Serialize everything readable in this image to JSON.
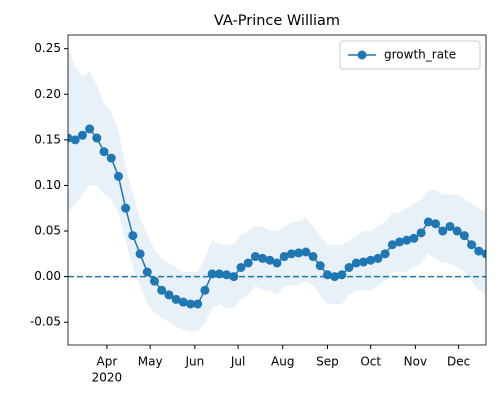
{
  "chart_data": {
    "type": "line",
    "title": "VA-Prince William",
    "x": [
      65,
      70,
      75,
      80,
      85,
      90,
      95,
      100,
      105,
      110,
      115,
      120,
      125,
      130,
      135,
      140,
      145,
      150,
      155,
      160,
      165,
      170,
      175,
      180,
      185,
      190,
      195,
      200,
      205,
      210,
      215,
      220,
      225,
      230,
      235,
      240,
      245,
      250,
      255,
      260,
      265,
      270,
      275,
      280,
      285,
      290,
      295,
      300,
      305,
      310,
      315,
      320,
      325,
      330,
      335,
      340,
      345,
      350,
      355
    ],
    "series": [
      {
        "name": "growth_rate",
        "color": "#1f77b4",
        "values": [
          0.152,
          0.15,
          0.155,
          0.162,
          0.152,
          0.137,
          0.13,
          0.11,
          0.075,
          0.045,
          0.025,
          0.005,
          -0.005,
          -0.015,
          -0.02,
          -0.025,
          -0.028,
          -0.03,
          -0.03,
          -0.015,
          0.003,
          0.003,
          0.002,
          0.0,
          0.01,
          0.015,
          0.022,
          0.02,
          0.018,
          0.015,
          0.022,
          0.025,
          0.026,
          0.027,
          0.022,
          0.012,
          0.002,
          0.0,
          0.002,
          0.01,
          0.015,
          0.016,
          0.018,
          0.02,
          0.025,
          0.035,
          0.038,
          0.04,
          0.042,
          0.048,
          0.06,
          0.058,
          0.05,
          0.055,
          0.05,
          0.045,
          0.035,
          0.028,
          0.025
        ]
      }
    ],
    "band": {
      "color": "#1f77b4",
      "lower": [
        0.07,
        0.08,
        0.09,
        0.1,
        0.1,
        0.09,
        0.085,
        0.07,
        0.04,
        0.01,
        -0.01,
        -0.03,
        -0.04,
        -0.045,
        -0.05,
        -0.055,
        -0.058,
        -0.06,
        -0.06,
        -0.05,
        -0.035,
        -0.03,
        -0.035,
        -0.035,
        -0.025,
        -0.02,
        -0.01,
        -0.015,
        -0.015,
        -0.02,
        -0.01,
        -0.01,
        -0.01,
        -0.005,
        -0.01,
        -0.02,
        -0.03,
        -0.03,
        -0.03,
        -0.02,
        -0.015,
        -0.015,
        -0.015,
        -0.01,
        -0.005,
        0.005,
        0.005,
        0.005,
        0.01,
        0.015,
        0.025,
        0.02,
        0.015,
        0.015,
        0.01,
        0.005,
        -0.005,
        -0.015,
        -0.02
      ],
      "upper": [
        0.25,
        0.23,
        0.22,
        0.225,
        0.21,
        0.19,
        0.18,
        0.16,
        0.12,
        0.09,
        0.065,
        0.045,
        0.03,
        0.02,
        0.015,
        0.01,
        0.005,
        0.005,
        0.005,
        0.02,
        0.04,
        0.035,
        0.035,
        0.035,
        0.045,
        0.05,
        0.055,
        0.055,
        0.05,
        0.05,
        0.055,
        0.06,
        0.06,
        0.065,
        0.055,
        0.045,
        0.035,
        0.035,
        0.035,
        0.04,
        0.045,
        0.05,
        0.05,
        0.055,
        0.06,
        0.07,
        0.07,
        0.075,
        0.08,
        0.085,
        0.095,
        0.095,
        0.09,
        0.09,
        0.09,
        0.085,
        0.08,
        0.075,
        0.07
      ]
    },
    "hline": {
      "value": 0,
      "color": "#1f77b4",
      "style": "dashed"
    },
    "xlim": [
      65,
      355
    ],
    "xticks": [
      {
        "value": 92,
        "label": "Apr"
      },
      {
        "value": 122,
        "label": "May"
      },
      {
        "value": 153,
        "label": "Jun"
      },
      {
        "value": 183,
        "label": "Jul"
      },
      {
        "value": 214,
        "label": "Aug"
      },
      {
        "value": 245,
        "label": "Sep"
      },
      {
        "value": 275,
        "label": "Oct"
      },
      {
        "value": 306,
        "label": "Nov"
      },
      {
        "value": 336,
        "label": "Dec"
      }
    ],
    "x_year_label": "2020",
    "ylim": [
      -0.075,
      0.265
    ],
    "yticks": [
      -0.05,
      {
        "value": 0,
        "label": "0.00"
      },
      0.05,
      {
        "value": 0.1,
        "label": "0.10"
      },
      0.15,
      {
        "value": 0.2,
        "label": "0.20"
      },
      0.25
    ],
    "legend": "upper right"
  }
}
